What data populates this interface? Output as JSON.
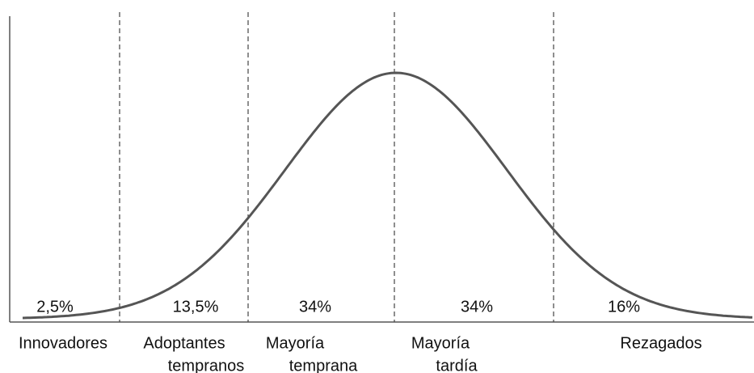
{
  "segments": [
    {
      "percent": "2,5%",
      "label": [
        "Innovadores"
      ]
    },
    {
      "percent": "13,5%",
      "label": [
        "Adoptantes",
        "tempranos"
      ]
    },
    {
      "percent": "34%",
      "label": [
        "Mayoría",
        "temprana"
      ]
    },
    {
      "percent": "34%",
      "label": [
        "Mayoría",
        "tardía"
      ]
    },
    {
      "percent": "16%",
      "label": [
        "Rezagados"
      ]
    }
  ]
}
